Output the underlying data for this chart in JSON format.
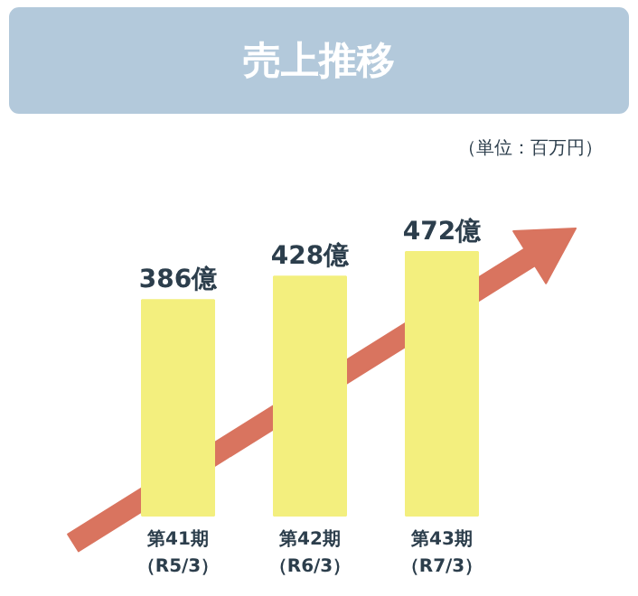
{
  "chart_data": {
    "type": "bar",
    "title": "売上推移",
    "annotations": [
      "（単位：百万円）"
    ],
    "categories": [
      "第41期（R5/3）",
      "第42期（R6/3）",
      "第43期（R7/3）"
    ],
    "values": [
      386,
      428,
      472
    ],
    "value_labels": [
      "386億",
      "428億",
      "472億"
    ],
    "color": "#f3ef7e"
  }
}
